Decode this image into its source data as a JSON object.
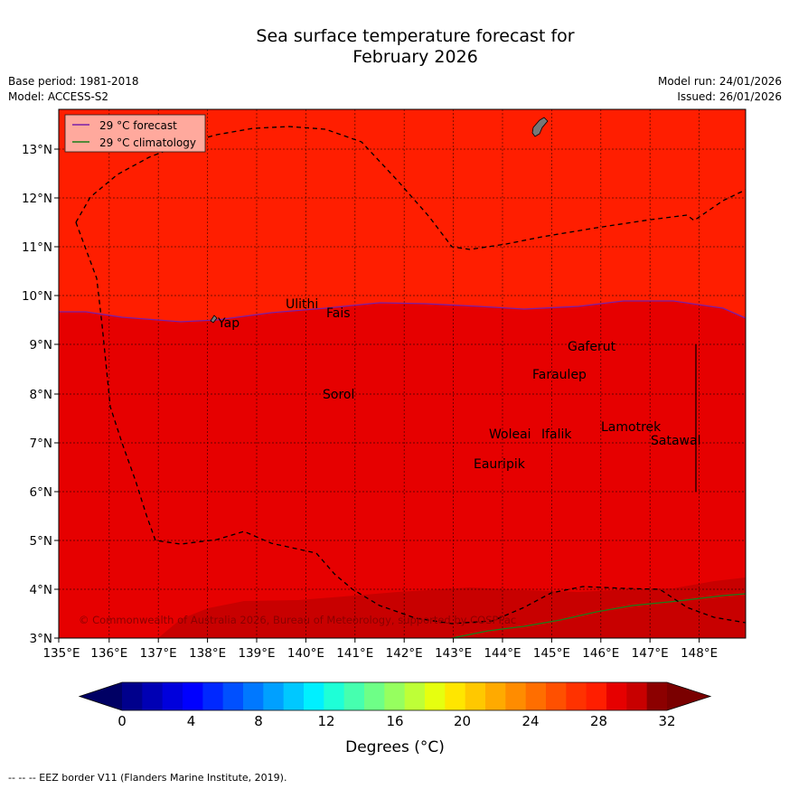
{
  "title_line1": "Sea surface temperature forecast for",
  "title_line2": "February 2026",
  "base_period": "Base period: 1981-2018",
  "model": "Model: ACCESS-S2",
  "model_run": "Model run: 24/01/2026",
  "issued": "Issued: 26/01/2026",
  "legend": {
    "forecast": "29 °C  forecast",
    "climatology": "29 °C  climatology",
    "forecast_color": "#7a1fa8",
    "climatology_color": "#1a7f1a"
  },
  "axes": {
    "lon_ticks": [
      "135°E",
      "136°E",
      "137°E",
      "138°E",
      "139°E",
      "140°E",
      "141°E",
      "142°E",
      "143°E",
      "144°E",
      "145°E",
      "146°E",
      "147°E",
      "148°E"
    ],
    "lat_ticks": [
      "3°N",
      "4°N",
      "5°N",
      "6°N",
      "7°N",
      "8°N",
      "9°N",
      "10°N",
      "11°N",
      "12°N",
      "13°N"
    ]
  },
  "places": [
    {
      "name": "Yap"
    },
    {
      "name": "Ulithi"
    },
    {
      "name": "Fais"
    },
    {
      "name": "Gaferut"
    },
    {
      "name": "Faraulep"
    },
    {
      "name": "Sorol"
    },
    {
      "name": "Lamotrek"
    },
    {
      "name": "Woleai"
    },
    {
      "name": "Ifalik"
    },
    {
      "name": "Satawal"
    },
    {
      "name": "Eauripik"
    }
  ],
  "copyright": "© Commonwealth of Australia 2026, Bureau of Meteorology, supported by COSPPac",
  "colorbar": {
    "ticks": [
      "0",
      "4",
      "8",
      "12",
      "16",
      "20",
      "24",
      "28",
      "32"
    ],
    "label": "Degrees (°C)",
    "colors": [
      "#00008c",
      "#0000b4",
      "#0000dc",
      "#0000ff",
      "#0028ff",
      "#0050ff",
      "#0078ff",
      "#00a0ff",
      "#00c8ff",
      "#00f0ff",
      "#1effd7",
      "#46ffaf",
      "#6eff87",
      "#96ff5f",
      "#beff37",
      "#e6ff0f",
      "#ffe600",
      "#ffc800",
      "#ffaa00",
      "#ff8c00",
      "#ff6e00",
      "#ff5000",
      "#ff3200",
      "#ff1e00",
      "#e60000",
      "#c80000",
      "#8c0000"
    ],
    "under_color": "#000064",
    "over_color": "#7a0000"
  },
  "footer": "--  --  -- EEZ border V11 (Flanders Marine Institute, 2019)."
}
